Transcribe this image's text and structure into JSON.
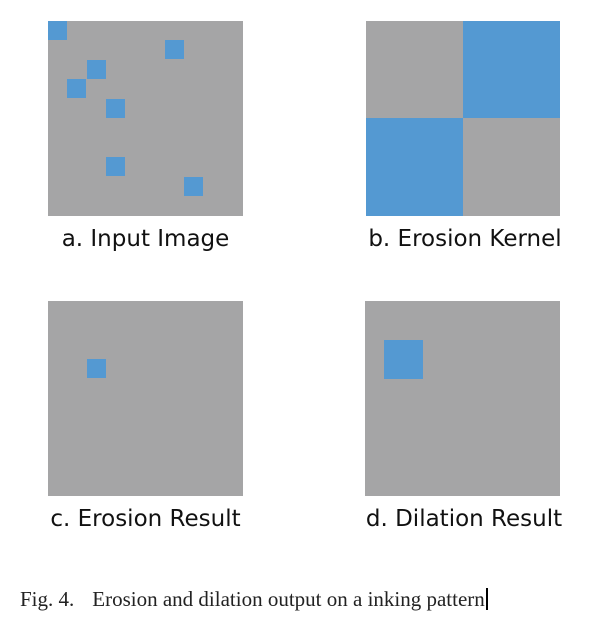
{
  "panels": {
    "a": {
      "label": "a. Input Image"
    },
    "b": {
      "label": "b. Erosion Kernel"
    },
    "c": {
      "label": "c. Erosion Result"
    },
    "d": {
      "label": "d. Dilation Result"
    }
  },
  "caption": {
    "number": "Fig. 4.",
    "text": "Erosion and dilation output on a inking pattern"
  },
  "colors": {
    "background_gray": "#a5a5a6",
    "pixel_blue": "#5499d2"
  }
}
